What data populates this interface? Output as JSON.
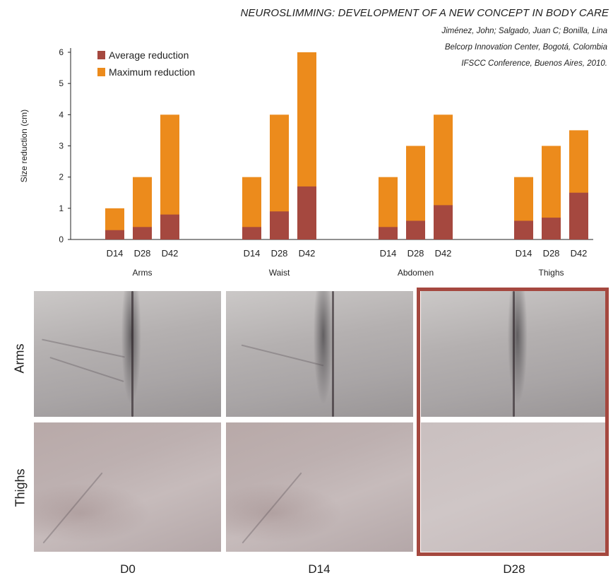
{
  "header": {
    "title": "NEUROSLIMMING: DEVELOPMENT OF A NEW CONCEPT IN BODY CARE",
    "authors": "Jiménez, John; Salgado, Juan C; Bonilla, Lina",
    "affiliation": "Belcorp Innovation Center, Bogotá, Colombia",
    "conference": "IFSCC Conference, Buenos Aires, 2010."
  },
  "chart_data": {
    "type": "bar",
    "stacked": true,
    "ylabel": "Size reduction (cm)",
    "ylim": [
      0,
      6
    ],
    "yticks": [
      "0",
      "1",
      "2",
      "3",
      "4",
      "5",
      "6"
    ],
    "legend_position": "top-left",
    "groups": [
      {
        "name": "Arms",
        "categories": [
          "D14",
          "D28",
          "D42"
        ],
        "average": [
          0.3,
          0.4,
          0.8
        ],
        "maximum": [
          1,
          2,
          4
        ]
      },
      {
        "name": "Waist",
        "categories": [
          "D14",
          "D28",
          "D42"
        ],
        "average": [
          0.4,
          0.9,
          1.7
        ],
        "maximum": [
          2,
          4,
          6
        ]
      },
      {
        "name": "Abdomen",
        "categories": [
          "D14",
          "D28",
          "D42"
        ],
        "average": [
          0.4,
          0.6,
          1.1
        ],
        "maximum": [
          2,
          3,
          4
        ]
      },
      {
        "name": "Thighs",
        "categories": [
          "D14",
          "D28",
          "D42"
        ],
        "average": [
          0.6,
          0.7,
          1.5
        ],
        "maximum": [
          2,
          3,
          3.5
        ]
      }
    ],
    "series": [
      {
        "name": "Average reduction",
        "color": "#a5483f"
      },
      {
        "name": "Maximum reduction",
        "color": "#ec8b1c"
      }
    ]
  },
  "photos": {
    "row_labels": [
      "Arms",
      "Thighs"
    ],
    "col_labels": [
      "D0",
      "D14",
      "D28"
    ],
    "highlighted_column": "D28",
    "highlight_color": "#a5483f"
  }
}
